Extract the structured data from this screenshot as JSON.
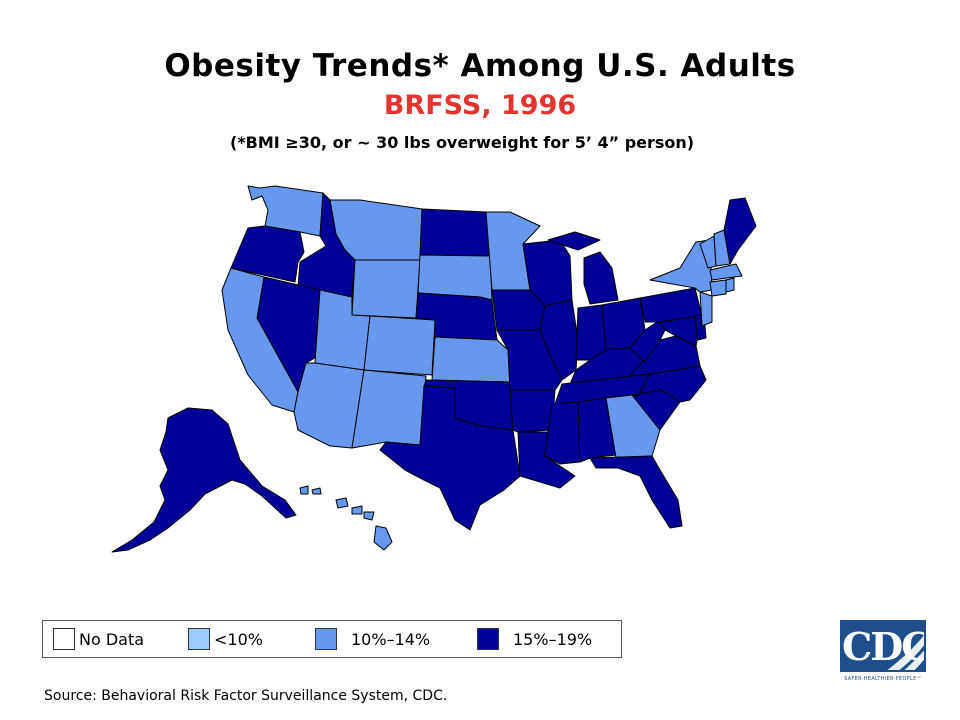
{
  "title": "Obesity Trends* Among U.S. Adults",
  "subtitle": "BRFSS, 1996",
  "note": "(*BMI ≥30, or ~ 30 lbs overweight for 5’ 4” person)",
  "colors": {
    "no_data": "#ffffff",
    "lt10": "#99ccff",
    "p10_14": "#6699ee",
    "p15_19": "#000099",
    "border": "#000000"
  },
  "legend": [
    {
      "label": "No Data",
      "color": "#ffffff"
    },
    {
      "label": "<10%",
      "color": "#99ccff"
    },
    {
      "label": "10%–14%",
      "color": "#6699ee"
    },
    {
      "label": "15%–19%",
      "color": "#000099"
    }
  ],
  "source": "Source: Behavioral Risk Factor Surveillance System, CDC.",
  "logo": {
    "text": "CDC",
    "tagline": "SAFER·HEALTHIER·PEOPLE™"
  },
  "states": {
    "WA": "10%–14%",
    "OR": "15%–19%",
    "ID": "15%–19%",
    "MT": "10%–14%",
    "WY": "10%–14%",
    "CA": "10%–14%",
    "NV": "15%–19%",
    "UT": "10%–14%",
    "CO": "10%–14%",
    "AZ": "10%–14%",
    "NM": "10%–14%",
    "ND": "15%–19%",
    "SD": "10%–14%",
    "NE": "15%–19%",
    "KS": "10%–14%",
    "OK": "15%–19%",
    "TX": "15%–19%",
    "MN": "10%–14%",
    "IA": "15%–19%",
    "MO": "15%–19%",
    "AR": "15%–19%",
    "LA": "15%–19%",
    "WI": "15%–19%",
    "IL": "15%–19%",
    "MI": "15%–19%",
    "IN": "15%–19%",
    "OH": "15%–19%",
    "KY": "15%–19%",
    "TN": "15%–19%",
    "MS": "15%–19%",
    "AL": "15%–19%",
    "GA": "10%–14%",
    "FL": "15%–19%",
    "SC": "15%–19%",
    "NC": "15%–19%",
    "VA": "15%–19%",
    "WV": "15%–19%",
    "PA": "15%–19%",
    "NY": "10%–14%",
    "VT": "10%–14%",
    "NH": "10%–14%",
    "ME": "15%–19%",
    "MA": "10%–14%",
    "RI": "10%–14%",
    "CT": "10%–14%",
    "NJ": "10%–14%",
    "DE": "15%–19%",
    "MD": "15%–19%",
    "AK": "15%–19%",
    "HI": "10%–14%"
  }
}
